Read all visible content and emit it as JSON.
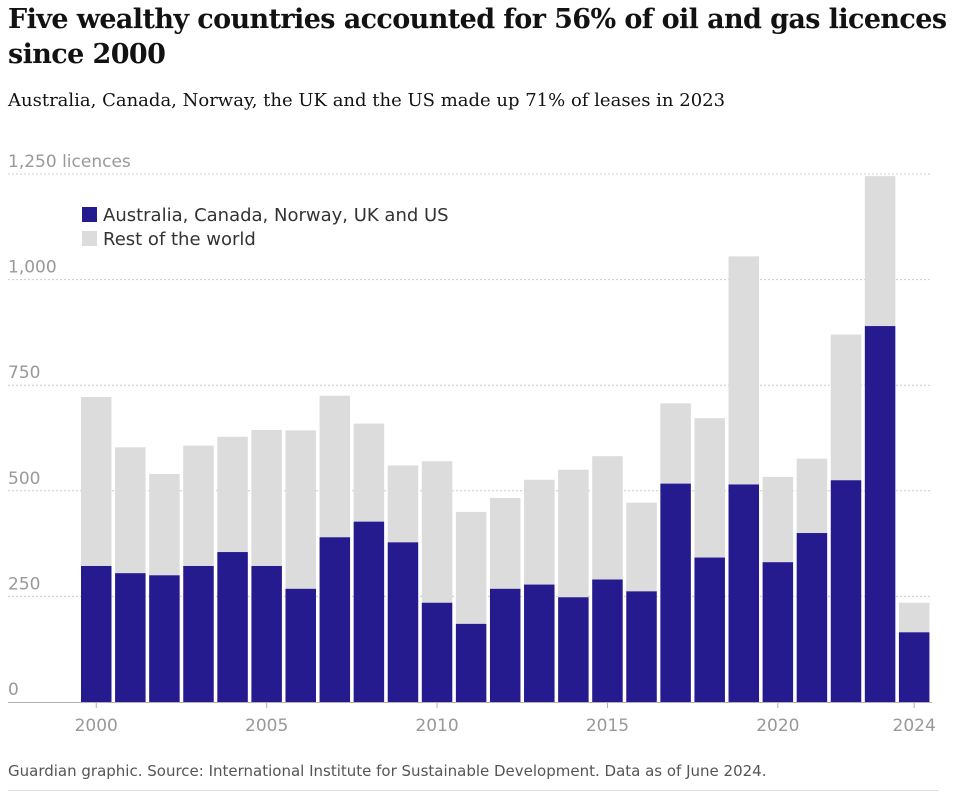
{
  "header": {
    "title": "Five wealthy countries accounted for 56% of oil and gas licences since 2000",
    "subtitle": "Australia, Canada, Norway, the UK and the US made up 71% of leases in 2023"
  },
  "footer": {
    "source": "Guardian graphic. Source: International Institute for Sustainable Development. Data as of June 2024."
  },
  "colors": {
    "five_countries": "#261a8f",
    "rest_of_world": "#dcdcdc",
    "gridline": "#cccccc",
    "axis_text": "#999999",
    "legend_text": "#333333"
  },
  "chart_data": {
    "type": "bar",
    "stacked": true,
    "title": "Five wealthy countries accounted for 56% of oil and gas licences since 2000",
    "subtitle": "Australia, Canada, Norway, the UK and the US made up 71% of leases in 2023",
    "xlabel": "",
    "ylabel": "licences",
    "categories": [
      2000,
      2001,
      2002,
      2003,
      2004,
      2005,
      2006,
      2007,
      2008,
      2009,
      2010,
      2011,
      2012,
      2013,
      2014,
      2015,
      2016,
      2017,
      2018,
      2019,
      2020,
      2021,
      2022,
      2023,
      2024
    ],
    "x_tick_labels": [
      "2000",
      "2005",
      "2010",
      "2015",
      "2020",
      "2024"
    ],
    "x_tick_values": [
      2000,
      2005,
      2010,
      2015,
      2020,
      2024
    ],
    "y_tick_labels": [
      "0",
      "250",
      "500",
      "750",
      "1,000",
      "1,250 licences"
    ],
    "y_tick_values": [
      0,
      250,
      500,
      750,
      1000,
      1250
    ],
    "ylim": [
      0,
      1250
    ],
    "grid": true,
    "legend_position": "top-left",
    "series": [
      {
        "name": "Australia, Canada, Norway, UK and US",
        "color": "#261a8f",
        "values": [
          322,
          305,
          300,
          322,
          355,
          322,
          268,
          390,
          427,
          378,
          235,
          185,
          268,
          278,
          248,
          290,
          262,
          517,
          342,
          515,
          331,
          400,
          525,
          890,
          165
        ]
      },
      {
        "name": "Rest of the world",
        "color": "#dcdcdc",
        "values": [
          400,
          298,
          240,
          285,
          273,
          322,
          375,
          335,
          232,
          182,
          335,
          265,
          215,
          248,
          302,
          292,
          210,
          190,
          330,
          540,
          202,
          176,
          345,
          355,
          70
        ]
      }
    ]
  }
}
